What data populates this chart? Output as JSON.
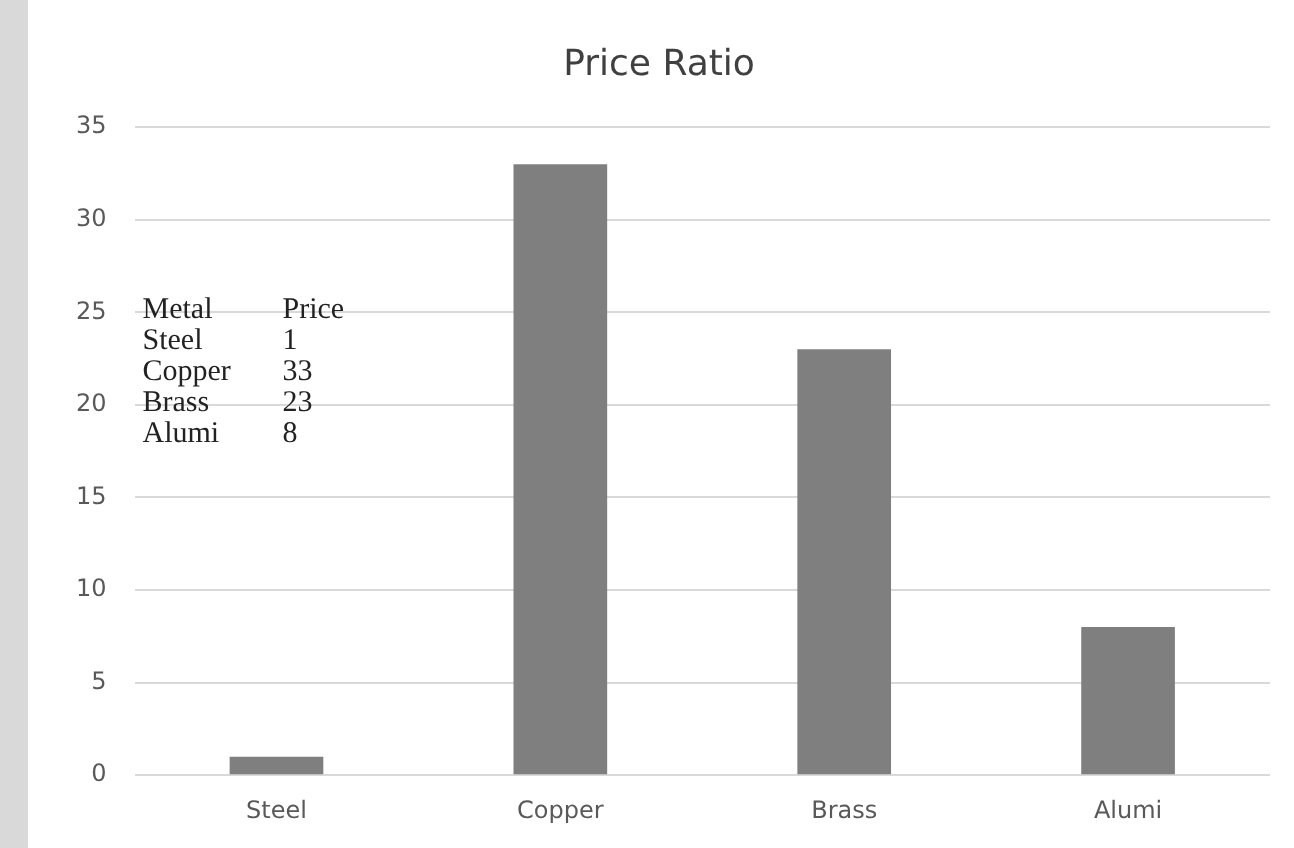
{
  "chart_data": {
    "type": "bar",
    "title": "Price Ratio",
    "categories": [
      "Steel",
      "Copper",
      "Brass",
      "Alumi"
    ],
    "values": [
      1,
      33,
      23,
      8
    ],
    "color": "#7f7f7f",
    "ylim": [
      0,
      35
    ],
    "yticks": [
      0,
      5,
      10,
      15,
      20,
      25,
      30,
      35
    ],
    "grid": "y",
    "legend": false,
    "annotations": [
      "Metal",
      "Price",
      "Steel",
      "1",
      "Copper",
      "33",
      "Brass",
      "23",
      "Alumi",
      "8"
    ]
  }
}
